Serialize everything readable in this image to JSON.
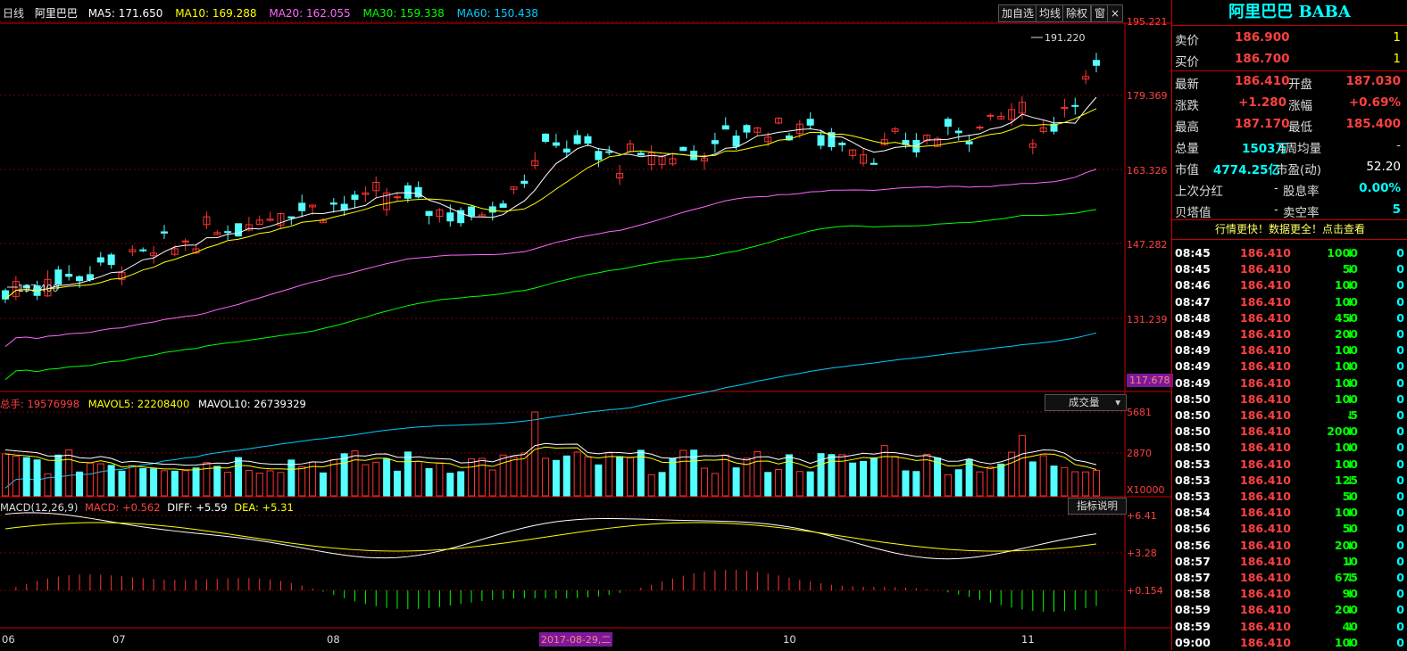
{
  "stock": {
    "name": "阿里巴巴",
    "code": "BABA",
    "title": "阿里巴巴 BABA"
  },
  "header": {
    "period": "日线",
    "name": "阿里巴巴",
    "ma": [
      {
        "label": "MA5: 171.650",
        "color": "#ffffff"
      },
      {
        "label": "MA10: 169.288",
        "color": "#ffff00"
      },
      {
        "label": "MA20: 162.055",
        "color": "#ff66ff"
      },
      {
        "label": "MA30: 159.338",
        "color": "#00ff00"
      },
      {
        "label": "MA60: 150.438",
        "color": "#00ccff"
      }
    ]
  },
  "toolbar": {
    "add": "加自选",
    "avg": "均线",
    "exright": "除权",
    "win": "窗",
    "close": "×"
  },
  "price_axis": {
    "labels": [
      "195.221",
      "179.369",
      "163.326",
      "147.282",
      "131.239"
    ],
    "current": "117.678"
  },
  "annotations": {
    "high": "191.220",
    "low": "137.400"
  },
  "volume": {
    "total_label": "总手: 19576998",
    "mavol5": "MAVOL5: 22208400",
    "mavol10": "MAVOL10: 26739329",
    "dropdown": "成交量",
    "axis": [
      "5681",
      "2870",
      "X10000"
    ]
  },
  "macd": {
    "params": "MACD(12,26,9)",
    "macd_val": "MACD: +0.562",
    "diff": "DIFF: +5.59",
    "dea": "DEA: +5.31",
    "btn": "指标说明",
    "axis": [
      "+6.41",
      "+3.28",
      "+0.154"
    ]
  },
  "time_axis": {
    "labels": [
      "06",
      "07",
      "08",
      "10",
      "11"
    ],
    "cursor": "2017-08-29,二"
  },
  "quote": {
    "sell_label": "卖价",
    "sell": "186.900",
    "sell_vol": "1",
    "buy_label": "买价",
    "buy": "186.700",
    "buy_vol": "1",
    "last_label": "最新",
    "last": "186.410",
    "open_label": "开盘",
    "open": "187.030",
    "chg_label": "涨跌",
    "chg": "+1.280",
    "chgpct_label": "涨幅",
    "chgpct": "+0.69%",
    "high_label": "最高",
    "high": "187.170",
    "low_label": "最低",
    "low": "185.400",
    "vol_label": "总量",
    "vol": "1503万",
    "avgvol_label": "4周均量",
    "avgvol": "-",
    "mcap_label": "市值",
    "mcap": "4774.25亿",
    "pe_label": "市盈(动)",
    "pe": "52.20",
    "div_label": "上次分红",
    "div": "-",
    "yield_label": "股息率",
    "yield": "0.00%",
    "beta_label": "贝塔值",
    "beta": "-",
    "short_label": "卖空率",
    "short": "5",
    "promo": "行情更快！数据更全！点击查看"
  },
  "ticks": [
    {
      "t": "08:45",
      "p": "186.410",
      "v": "1000"
    },
    {
      "t": "08:45",
      "p": "186.410",
      "v": "50"
    },
    {
      "t": "08:46",
      "p": "186.410",
      "v": "100"
    },
    {
      "t": "08:47",
      "p": "186.410",
      "v": "100"
    },
    {
      "t": "08:48",
      "p": "186.410",
      "v": "450"
    },
    {
      "t": "08:49",
      "p": "186.410",
      "v": "200"
    },
    {
      "t": "08:49",
      "p": "186.410",
      "v": "100"
    },
    {
      "t": "08:49",
      "p": "186.410",
      "v": "100"
    },
    {
      "t": "08:49",
      "p": "186.410",
      "v": "100"
    },
    {
      "t": "08:50",
      "p": "186.410",
      "v": "100"
    },
    {
      "t": "08:50",
      "p": "186.410",
      "v": "5"
    },
    {
      "t": "08:50",
      "p": "186.410",
      "v": "2000"
    },
    {
      "t": "08:50",
      "p": "186.410",
      "v": "100"
    },
    {
      "t": "08:53",
      "p": "186.410",
      "v": "100"
    },
    {
      "t": "08:53",
      "p": "186.410",
      "v": "125"
    },
    {
      "t": "08:53",
      "p": "186.410",
      "v": "50"
    },
    {
      "t": "08:54",
      "p": "186.410",
      "v": "100"
    },
    {
      "t": "08:56",
      "p": "186.410",
      "v": "50"
    },
    {
      "t": "08:56",
      "p": "186.410",
      "v": "200"
    },
    {
      "t": "08:57",
      "p": "186.410",
      "v": "10"
    },
    {
      "t": "08:57",
      "p": "186.410",
      "v": "675"
    },
    {
      "t": "08:58",
      "p": "186.410",
      "v": "90"
    },
    {
      "t": "08:59",
      "p": "186.410",
      "v": "200"
    },
    {
      "t": "08:59",
      "p": "186.410",
      "v": "40"
    },
    {
      "t": "09:00",
      "p": "186.410",
      "v": "100"
    }
  ],
  "tick_extra": "0",
  "colors": {
    "up": "#ff3333",
    "down": "#54ffff",
    "grid": "#7a0000",
    "bg": "#000000"
  }
}
